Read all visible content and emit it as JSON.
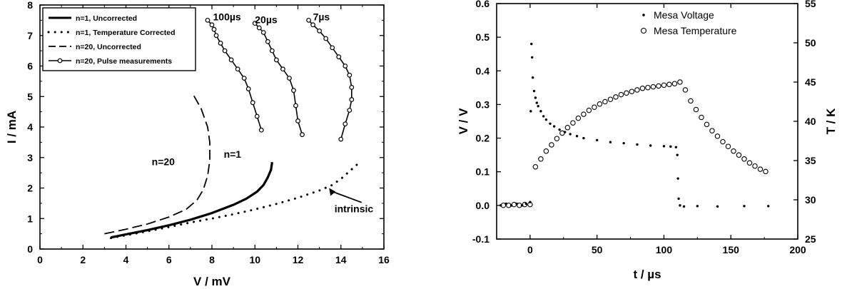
{
  "chart_data": [
    {
      "type": "line",
      "xlabel": "V / mV",
      "ylabel": "I / mA",
      "xlim": [
        0,
        16
      ],
      "ylim": [
        0,
        8
      ],
      "xticks": [
        "0",
        "2",
        "4",
        "6",
        "8",
        "10",
        "12",
        "14",
        "16"
      ],
      "yticks": [
        "0",
        "1",
        "2",
        "3",
        "4",
        "5",
        "6",
        "7",
        "8"
      ],
      "legend_position": "top-left",
      "legend": [
        "n=1, Uncorrected",
        "n=1, Temperature Corrected",
        "n=20, Uncorrected",
        "n=20, Pulse measurements"
      ],
      "series": [
        {
          "name": "n=1, Uncorrected",
          "style": "solid",
          "x": [
            3.3,
            4.0,
            5.0,
            6.0,
            7.0,
            8.0,
            9.0,
            9.6,
            10.1,
            10.4,
            10.6,
            10.75,
            10.8
          ],
          "y": [
            0.38,
            0.48,
            0.62,
            0.78,
            0.96,
            1.18,
            1.45,
            1.65,
            1.88,
            2.1,
            2.35,
            2.6,
            2.85
          ]
        },
        {
          "name": "n=1, Temperature Corrected",
          "style": "dotted",
          "x": [
            3.3,
            4.0,
            5.0,
            6.0,
            7.0,
            8.0,
            9.0,
            10.0,
            11.0,
            12.0,
            13.0,
            13.6,
            14.0,
            14.4,
            14.8
          ],
          "y": [
            0.36,
            0.45,
            0.58,
            0.72,
            0.87,
            1.0,
            1.14,
            1.3,
            1.48,
            1.68,
            1.92,
            2.1,
            2.3,
            2.55,
            2.8
          ]
        },
        {
          "name": "n=20, Uncorrected",
          "style": "dashed",
          "x": [
            3.0,
            4.0,
            5.0,
            6.0,
            6.8,
            7.3,
            7.6,
            7.8,
            7.9,
            7.9,
            7.8,
            7.5,
            7.1
          ],
          "y": [
            0.5,
            0.65,
            0.82,
            1.05,
            1.3,
            1.6,
            1.95,
            2.4,
            2.9,
            3.5,
            4.0,
            4.6,
            5.1
          ]
        },
        {
          "name": "100µs",
          "style": "line-marker",
          "x": [
            10.3,
            10.1,
            9.9,
            9.7,
            9.5,
            9.2,
            8.9,
            8.6,
            8.4,
            8.2,
            8.1,
            8.0,
            7.8
          ],
          "y": [
            3.9,
            4.35,
            4.8,
            5.25,
            5.6,
            5.9,
            6.2,
            6.5,
            6.75,
            7.0,
            7.2,
            7.35,
            7.5
          ]
        },
        {
          "name": "20µs",
          "style": "line-marker",
          "x": [
            12.2,
            12.0,
            11.9,
            11.8,
            11.6,
            11.3,
            11.0,
            10.8,
            10.6,
            10.4,
            10.2,
            10.0
          ],
          "y": [
            3.75,
            4.2,
            4.7,
            5.2,
            5.6,
            5.9,
            6.2,
            6.5,
            6.8,
            7.1,
            7.25,
            7.4
          ]
        },
        {
          "name": "7µs",
          "style": "line-marker",
          "x": [
            14.0,
            14.2,
            14.4,
            14.5,
            14.5,
            14.4,
            14.2,
            13.9,
            13.6,
            13.3,
            13.0,
            12.7,
            12.5
          ],
          "y": [
            3.6,
            4.1,
            4.55,
            4.9,
            5.3,
            5.7,
            6.0,
            6.3,
            6.6,
            6.9,
            7.15,
            7.35,
            7.5
          ]
        }
      ],
      "annotations": [
        {
          "text": "100µs",
          "x": 8.05,
          "y": 7.5
        },
        {
          "text": "20µs",
          "x": 10.0,
          "y": 7.4
        },
        {
          "text": "7µs",
          "x": 12.7,
          "y": 7.5
        },
        {
          "text": "n=20",
          "x": 5.2,
          "y": 2.75
        },
        {
          "text": "n=1",
          "x": 8.55,
          "y": 3.0
        },
        {
          "text": "intrinsic",
          "x": 13.7,
          "y": 1.2,
          "arrow_to": [
            13.45,
            2.0
          ]
        }
      ]
    },
    {
      "type": "scatter",
      "xlabel": "t / µs",
      "ylabel": "V / V",
      "y2label": "T / K",
      "xlim": [
        -25,
        200
      ],
      "ylim": [
        -0.1,
        0.6
      ],
      "y2lim": [
        25,
        55
      ],
      "xticks": [
        "0",
        "50",
        "100",
        "150",
        "200"
      ],
      "yticks": [
        "-0.1",
        "0.0",
        "0.1",
        "0.2",
        "0.3",
        "0.4",
        "0.5",
        "0.6"
      ],
      "y2ticks": [
        "25",
        "30",
        "35",
        "40",
        "45",
        "50",
        "55"
      ],
      "legend_position": "top-right",
      "legend": [
        "Mesa Voltage",
        "Mesa Temperature"
      ],
      "series": [
        {
          "name": "Mesa Voltage",
          "marker": "dot",
          "axis": "left",
          "x": [
            -22,
            -18,
            -14,
            -10,
            -6,
            -3,
            0,
            0.5,
            1,
            1.5,
            2,
            3,
            4,
            5,
            6,
            8,
            10,
            12,
            15,
            18,
            22,
            26,
            30,
            35,
            40,
            50,
            60,
            70,
            80,
            90,
            100,
            105,
            109,
            110,
            110.5,
            111,
            112,
            115,
            125,
            140,
            160,
            178
          ],
          "y": [
            0.0,
            0.005,
            0.0,
            0.005,
            0.0,
            0.005,
            0.01,
            0.28,
            0.48,
            0.44,
            0.38,
            0.34,
            0.32,
            0.305,
            0.295,
            0.28,
            0.265,
            0.255,
            0.243,
            0.235,
            0.225,
            0.218,
            0.212,
            0.206,
            0.2,
            0.194,
            0.188,
            0.185,
            0.181,
            0.178,
            0.176,
            0.175,
            0.173,
            0.15,
            0.08,
            0.02,
            0.0,
            -0.003,
            -0.002,
            -0.003,
            -0.002,
            -0.002
          ]
        },
        {
          "name": "Mesa Temperature",
          "marker": "open-circle",
          "axis": "right",
          "x": [
            -20,
            -16,
            -12,
            -8,
            -4,
            0,
            4,
            8,
            12,
            16,
            20,
            24,
            28,
            32,
            36,
            40,
            44,
            48,
            52,
            56,
            60,
            64,
            68,
            72,
            76,
            80,
            84,
            88,
            92,
            96,
            100,
            104,
            108,
            112,
            116,
            120,
            124,
            128,
            132,
            136,
            140,
            144,
            148,
            152,
            156,
            160,
            164,
            168,
            172,
            176
          ],
          "y": [
            29.3,
            29.3,
            29.4,
            29.3,
            29.4,
            29.4,
            34.2,
            35.2,
            36.2,
            37.0,
            37.8,
            38.5,
            39.2,
            39.8,
            40.4,
            40.9,
            41.4,
            41.8,
            42.2,
            42.5,
            42.8,
            43.1,
            43.4,
            43.6,
            43.8,
            44.0,
            44.2,
            44.3,
            44.4,
            44.5,
            44.6,
            44.7,
            44.8,
            45.0,
            44.0,
            42.6,
            41.5,
            40.5,
            39.6,
            38.8,
            38.1,
            37.4,
            36.8,
            36.2,
            35.7,
            35.2,
            34.7,
            34.3,
            33.9,
            33.6
          ]
        }
      ]
    }
  ]
}
